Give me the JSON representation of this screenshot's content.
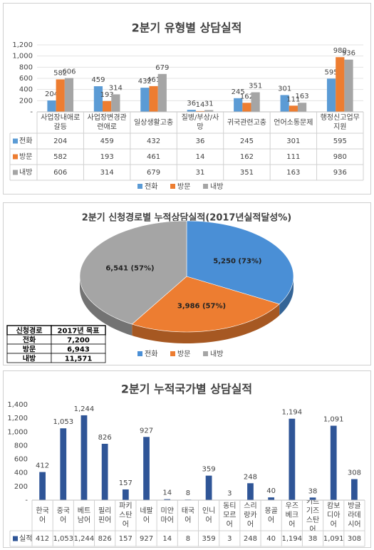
{
  "chart_data": [
    {
      "type": "bar",
      "title": "2분기 유형별 상담실적",
      "categories": [
        "사업장내애로갈등",
        "사업장변경관련애로",
        "일상생활고충",
        "질병/부상/사망",
        "귀국관련고충",
        "언어소통문제",
        "행정신고업무지원"
      ],
      "series": [
        {
          "name": "전화",
          "color": "#5b9bd5",
          "values": [
            204,
            459,
            432,
            36,
            245,
            301,
            595
          ]
        },
        {
          "name": "방문",
          "color": "#ed7d31",
          "values": [
            582,
            193,
            461,
            14,
            162,
            111,
            980
          ]
        },
        {
          "name": "내방",
          "color": "#a5a5a5",
          "values": [
            606,
            314,
            679,
            31,
            351,
            163,
            936
          ]
        }
      ],
      "ylim": [
        0,
        1200
      ],
      "yticks": [
        {
          "value": 0,
          "label": "-"
        },
        200,
        400,
        600,
        800,
        {
          "value": 1000,
          "label": "1,000"
        },
        {
          "value": 1200,
          "label": "1,200"
        }
      ],
      "grid": true,
      "legend": "bottom"
    },
    {
      "type": "pie",
      "title": "2분기 신청경로별 누적상담실적(2017년실적달성%)",
      "categories": [
        "전화",
        "방문",
        "내방"
      ],
      "values": [
        5250,
        3986,
        6541
      ],
      "value_labels": [
        "5,250 (73%)",
        "3,986 (57%)",
        "6,541 (57%)"
      ],
      "colors": [
        "#4a8fd6",
        "#ed7d31",
        "#a5a5a5"
      ],
      "table": {
        "header": [
          "신청경로",
          "2017년 목표"
        ],
        "rows": [
          [
            "전화",
            "7,200"
          ],
          [
            "방문",
            "6,943"
          ],
          [
            "내방",
            "11,571"
          ]
        ]
      },
      "legend": "bottom"
    },
    {
      "type": "bar",
      "title": "2분기 누적국가별 상담실적",
      "categories": [
        "한국어",
        "중국어",
        "베트남어",
        "필리핀어",
        "파키스탄어",
        "네팔어",
        "미얀마어",
        "태국어",
        "인니어",
        "동티모르어",
        "스리랑카어",
        "몽골어",
        "우즈베크어",
        "키르기즈스탄어",
        "캄보디아어",
        "방글라데시어"
      ],
      "series": [
        {
          "name": "실적",
          "color": "#2f5597",
          "values": [
            412,
            1053,
            1244,
            826,
            157,
            927,
            14,
            8,
            359,
            3,
            248,
            40,
            1194,
            38,
            1091,
            308
          ],
          "value_labels": [
            "412",
            "1,053",
            "1,244",
            "826",
            "157",
            "927",
            "14",
            "8",
            "359",
            "3",
            "248",
            "40",
            "1,194",
            "38",
            "1,091",
            "308"
          ]
        }
      ],
      "ylim": [
        0,
        1400
      ],
      "yticks": [
        {
          "value": 0,
          "label": "-"
        },
        200,
        400,
        600,
        800,
        {
          "value": 1000,
          "label": "1,000"
        },
        {
          "value": 1200,
          "label": "1,200"
        },
        {
          "value": 1400,
          "label": "1,400"
        }
      ],
      "grid": false
    }
  ]
}
